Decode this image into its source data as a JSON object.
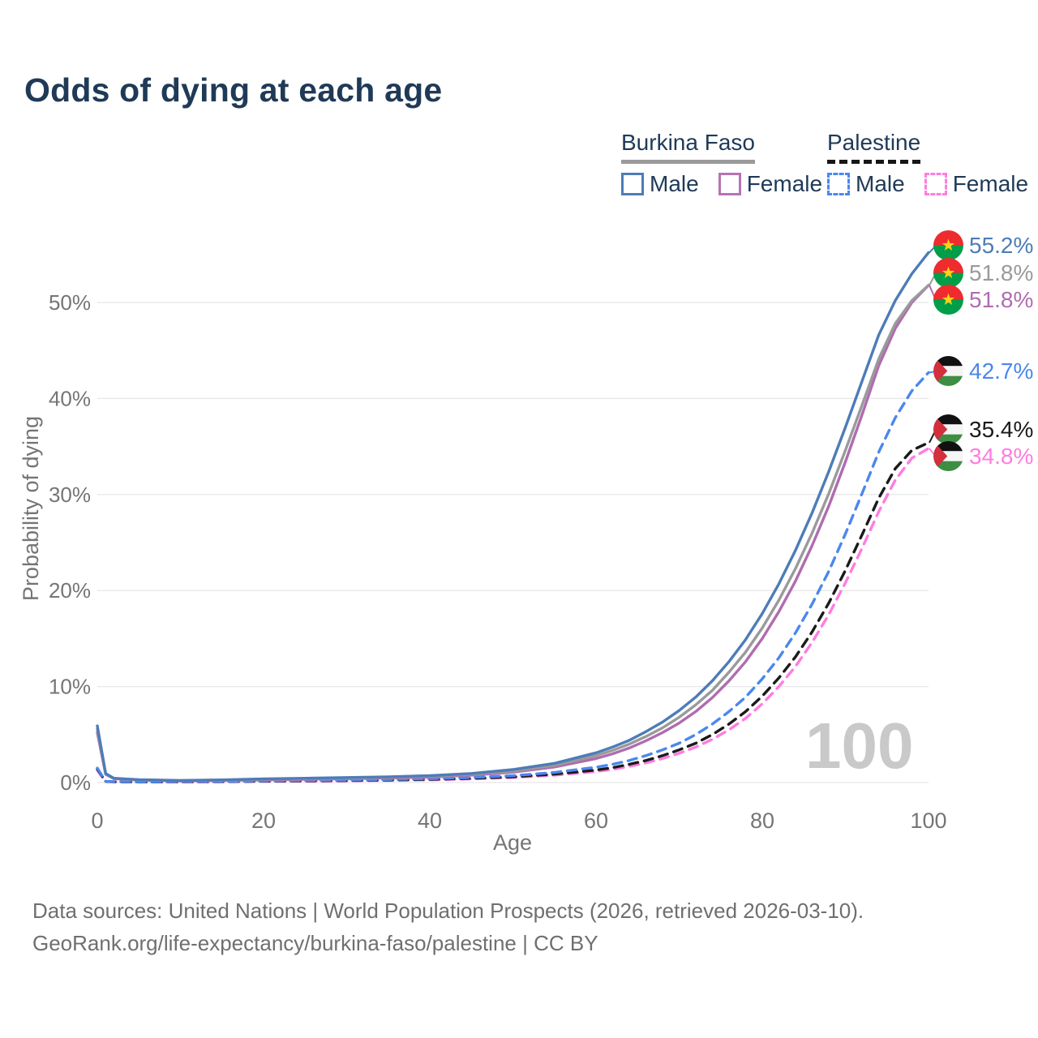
{
  "title": "Odds of dying at each age",
  "legend": {
    "groups": [
      {
        "label": "Burkina Faso",
        "line_style": "solid",
        "underline_color": "#9a9a9a"
      },
      {
        "label": "Palestine",
        "line_style": "dashed",
        "underline_color": "#161616"
      }
    ],
    "items": [
      {
        "label": "Male",
        "color": "#4d7cb8",
        "dashed": false
      },
      {
        "label": "Female",
        "color": "#b673b3",
        "dashed": false
      },
      {
        "label": "Male",
        "color": "#4b87ee",
        "dashed": true
      },
      {
        "label": "Female",
        "color": "#ff7ce0",
        "dashed": true
      }
    ]
  },
  "chart_data": {
    "type": "line",
    "title": "Odds of dying at each age",
    "xlabel": "Age",
    "ylabel": "Probability of dying",
    "xlim": [
      0,
      100
    ],
    "ylim": [
      0,
      57
    ],
    "xticks": [
      0,
      20,
      40,
      60,
      80,
      100
    ],
    "yticks": [
      0,
      10,
      20,
      30,
      40,
      50
    ],
    "ytick_suffix": "%",
    "grid": "horizontal",
    "legend_position": "top-right",
    "hover_age": "100",
    "ages": [
      0,
      1,
      2,
      5,
      10,
      15,
      20,
      25,
      30,
      35,
      40,
      45,
      50,
      55,
      60,
      62,
      64,
      66,
      68,
      70,
      72,
      74,
      76,
      78,
      80,
      82,
      84,
      86,
      88,
      90,
      92,
      94,
      96,
      98,
      100
    ],
    "series": [
      {
        "id": "bf-male",
        "country": "Burkina Faso",
        "sex": "Male",
        "color": "#4d7cb8",
        "dashed": false,
        "end_label": "55.2%",
        "end_value": 55.2,
        "flag_icon": "burkina-faso-flag",
        "values": [
          5.9,
          0.95,
          0.45,
          0.3,
          0.22,
          0.28,
          0.38,
          0.45,
          0.52,
          0.6,
          0.72,
          0.95,
          1.35,
          2.0,
          3.1,
          3.7,
          4.4,
          5.3,
          6.3,
          7.5,
          8.9,
          10.6,
          12.6,
          14.9,
          17.6,
          20.7,
          24.2,
          28.1,
          32.4,
          37.0,
          41.8,
          46.6,
          50.2,
          53.0,
          55.2
        ]
      },
      {
        "id": "bf-all",
        "country": "Burkina Faso",
        "sex": "All",
        "color": "#9a9a9a",
        "dashed": false,
        "end_label": "51.8%",
        "end_value": 51.8,
        "flag_icon": "burkina-faso-flag",
        "values": [
          5.55,
          0.9,
          0.42,
          0.28,
          0.2,
          0.25,
          0.33,
          0.4,
          0.46,
          0.54,
          0.65,
          0.86,
          1.2,
          1.8,
          2.8,
          3.35,
          4.0,
          4.8,
          5.7,
          6.8,
          8.1,
          9.6,
          11.5,
          13.6,
          16.1,
          19.0,
          22.3,
          26.0,
          30.1,
          34.6,
          39.3,
          44.1,
          47.8,
          50.2,
          51.8
        ]
      },
      {
        "id": "bf-female",
        "country": "Burkina Faso",
        "sex": "Female",
        "color": "#b06cb0",
        "dashed": false,
        "end_label": "51.8%",
        "end_value": 51.8,
        "flag_icon": "burkina-faso-flag",
        "values": [
          5.2,
          0.85,
          0.4,
          0.26,
          0.18,
          0.22,
          0.28,
          0.34,
          0.4,
          0.47,
          0.57,
          0.77,
          1.08,
          1.62,
          2.5,
          3.0,
          3.6,
          4.35,
          5.2,
          6.2,
          7.4,
          8.85,
          10.6,
          12.6,
          15.0,
          17.8,
          21.0,
          24.7,
          28.8,
          33.4,
          38.3,
          43.4,
          47.3,
          50.0,
          51.8
        ]
      },
      {
        "id": "ps-male",
        "country": "Palestine",
        "sex": "Male",
        "color": "#4b87ee",
        "dashed": true,
        "end_label": "42.7%",
        "end_value": 42.7,
        "flag_icon": "palestine-flag",
        "values": [
          1.5,
          0.12,
          0.09,
          0.07,
          0.08,
          0.12,
          0.17,
          0.21,
          0.25,
          0.31,
          0.39,
          0.52,
          0.72,
          1.05,
          1.6,
          1.9,
          2.3,
          2.8,
          3.4,
          4.1,
          5.0,
          6.1,
          7.4,
          8.9,
          10.8,
          13.0,
          15.6,
          18.6,
          22.0,
          25.9,
          30.1,
          34.4,
          38.0,
          40.8,
          42.7
        ]
      },
      {
        "id": "ps-all",
        "country": "Palestine",
        "sex": "All",
        "color": "#1a1a1a",
        "dashed": true,
        "end_label": "35.4%",
        "end_value": 35.4,
        "flag_icon": "palestine-flag",
        "values": [
          1.4,
          0.11,
          0.08,
          0.06,
          0.07,
          0.1,
          0.14,
          0.17,
          0.21,
          0.26,
          0.33,
          0.44,
          0.6,
          0.88,
          1.3,
          1.55,
          1.9,
          2.3,
          2.8,
          3.4,
          4.1,
          5.0,
          6.1,
          7.4,
          9.0,
          10.9,
          13.1,
          15.7,
          18.7,
          22.1,
          25.8,
          29.6,
          32.7,
          34.6,
          35.4
        ]
      },
      {
        "id": "ps-female",
        "country": "Palestine",
        "sex": "Female",
        "color": "#ff7ce0",
        "dashed": true,
        "end_label": "34.8%",
        "end_value": 34.8,
        "flag_icon": "palestine-flag",
        "values": [
          1.3,
          0.1,
          0.07,
          0.05,
          0.06,
          0.08,
          0.11,
          0.14,
          0.17,
          0.22,
          0.28,
          0.38,
          0.52,
          0.77,
          1.15,
          1.38,
          1.68,
          2.05,
          2.5,
          3.05,
          3.7,
          4.5,
          5.5,
          6.7,
          8.2,
          10.0,
          12.1,
          14.6,
          17.5,
          20.8,
          24.4,
          28.2,
          31.5,
          33.8,
          34.8
        ]
      }
    ]
  },
  "footer": {
    "line1": "Data sources: United Nations | World Population Prospects (2026, retrieved 2026-03-10).",
    "line2": "GeoRank.org/life-expectancy/burkina-faso/palestine | CC BY"
  }
}
